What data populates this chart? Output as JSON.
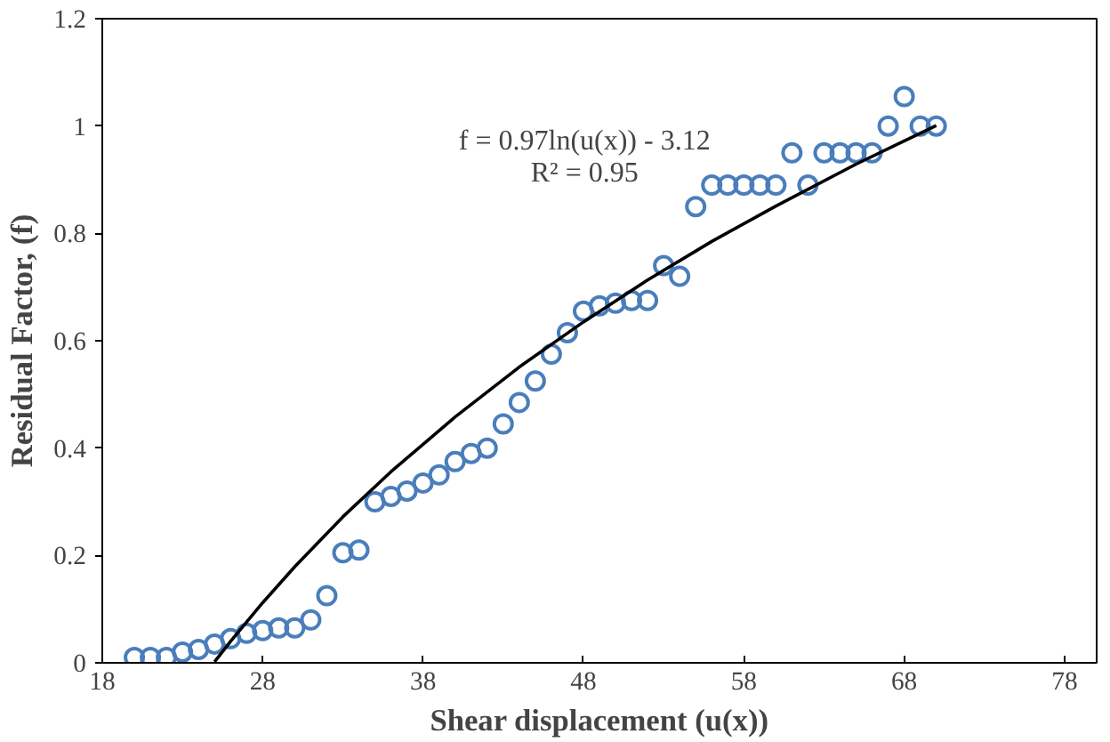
{
  "chart_data": {
    "type": "scatter",
    "xlabel": "Shear displacement (u(x))",
    "ylabel": "Residual Factor, (f)",
    "xlim": [
      18,
      80
    ],
    "ylim": [
      0,
      1.2
    ],
    "xticks": [
      18,
      28,
      38,
      48,
      58,
      68,
      78
    ],
    "yticks": [
      0,
      0.2,
      0.4,
      0.6,
      0.8,
      1,
      1.2
    ],
    "grid": false,
    "annotations": [
      "f = 0.97ln(u(x)) - 3.12",
      "R² = 0.95"
    ],
    "series": [
      {
        "color": "#4a7ebb",
        "marker": "circle",
        "x": [
          20,
          21,
          22,
          23,
          24,
          25,
          26,
          27,
          28,
          29,
          30,
          31,
          32,
          33,
          34,
          35,
          36,
          37,
          38,
          39,
          40,
          41,
          42,
          43,
          44,
          45,
          46,
          47,
          48,
          49,
          50,
          51,
          52,
          53,
          54,
          55,
          56,
          57,
          58,
          59,
          60,
          61,
          62,
          63,
          64,
          65,
          66,
          67,
          68,
          69,
          70
        ],
        "values": [
          0.01,
          0.01,
          0.01,
          0.02,
          0.025,
          0.035,
          0.045,
          0.055,
          0.06,
          0.065,
          0.065,
          0.08,
          0.125,
          0.205,
          0.21,
          0.3,
          0.31,
          0.32,
          0.335,
          0.35,
          0.375,
          0.39,
          0.4,
          0.445,
          0.485,
          0.525,
          0.575,
          0.615,
          0.655,
          0.665,
          0.67,
          0.675,
          0.675,
          0.74,
          0.72,
          0.85,
          0.89,
          0.89,
          0.89,
          0.89,
          0.89,
          0.95,
          0.89,
          0.95,
          0.95,
          0.95,
          0.95,
          1.0,
          1.055,
          1.0,
          1.0
        ]
      },
      {
        "type": "line",
        "color": "#000000",
        "line_style": "solid",
        "marker": "none",
        "x": [
          25,
          26,
          28,
          30,
          33,
          36,
          40,
          44,
          48,
          52,
          56,
          60,
          65,
          70
        ],
        "values": [
          0.002,
          0.04,
          0.112,
          0.179,
          0.272,
          0.356,
          0.458,
          0.551,
          0.635,
          0.713,
          0.785,
          0.851,
          0.929,
          1.001
        ]
      }
    ]
  }
}
